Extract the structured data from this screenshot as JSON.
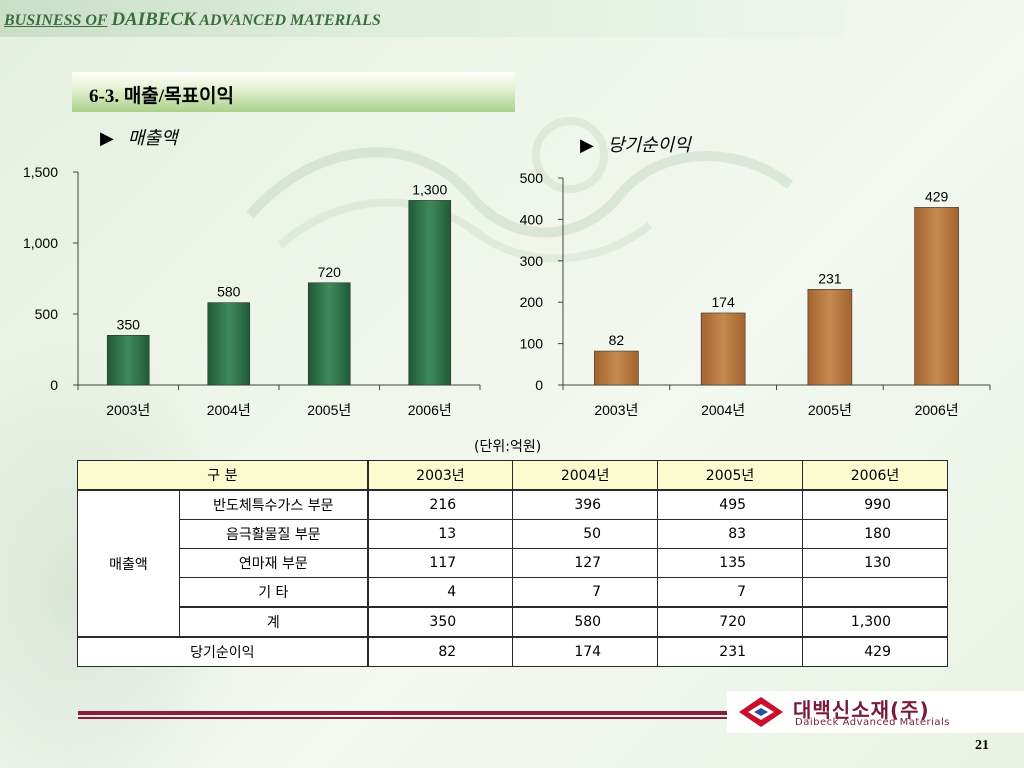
{
  "header": {
    "business": "BUSINESS OF",
    "company": "DAIBECK",
    "rest": "ADVANCED MATERIALS"
  },
  "section": {
    "title": "6-3. 매출/목표이익"
  },
  "charts": {
    "left_title": "매출액",
    "right_title": "당기순이익",
    "bullet": "▶"
  },
  "chart_data": [
    {
      "type": "bar",
      "title": "매출액",
      "categories": [
        "2003년",
        "2004년",
        "2005년",
        "2006년"
      ],
      "values": [
        350,
        580,
        720,
        1300
      ],
      "data_labels": [
        "350",
        "580",
        "720",
        "1,300"
      ],
      "ylim": [
        0,
        1500
      ],
      "yticks": [
        0,
        500,
        1000,
        1500
      ],
      "ytick_labels": [
        "0",
        "500",
        "1,000",
        "1,500"
      ],
      "bar_color": "#1f5a35",
      "xlabel": "",
      "ylabel": ""
    },
    {
      "type": "bar",
      "title": "당기순이익",
      "categories": [
        "2003년",
        "2004년",
        "2005년",
        "2006년"
      ],
      "values": [
        82,
        174,
        231,
        429
      ],
      "data_labels": [
        "82",
        "174",
        "231",
        "429"
      ],
      "ylim": [
        0,
        500
      ],
      "yticks": [
        0,
        100,
        200,
        300,
        400,
        500
      ],
      "ytick_labels": [
        "0",
        "100",
        "200",
        "300",
        "400",
        "500"
      ],
      "bar_color": "#a4632f",
      "xlabel": "",
      "ylabel": ""
    }
  ],
  "unit_label": "(단위:억원)",
  "table": {
    "header": [
      "구        분",
      "2003년",
      "2004년",
      "2005년",
      "2006년"
    ],
    "group_label": "매출액",
    "rows": [
      {
        "label": "반도체특수가스 부문",
        "values": [
          "216",
          "396",
          "495",
          "990"
        ]
      },
      {
        "label": "음극활물질 부문",
        "values": [
          "13",
          "50",
          "83",
          "180"
        ]
      },
      {
        "label": "연마재 부문",
        "values": [
          "117",
          "127",
          "135",
          "130"
        ]
      },
      {
        "label": "기        타",
        "values": [
          "4",
          "7",
          "7",
          ""
        ]
      },
      {
        "label": "계",
        "values": [
          "350",
          "580",
          "720",
          "1,300"
        ]
      }
    ],
    "net_income": {
      "label": "당기순이익",
      "values": [
        "82",
        "174",
        "231",
        "429"
      ]
    }
  },
  "logo": {
    "korean": "대백신소재(주)",
    "english": "Daibeck Advanced Materials"
  },
  "page_number": "21"
}
